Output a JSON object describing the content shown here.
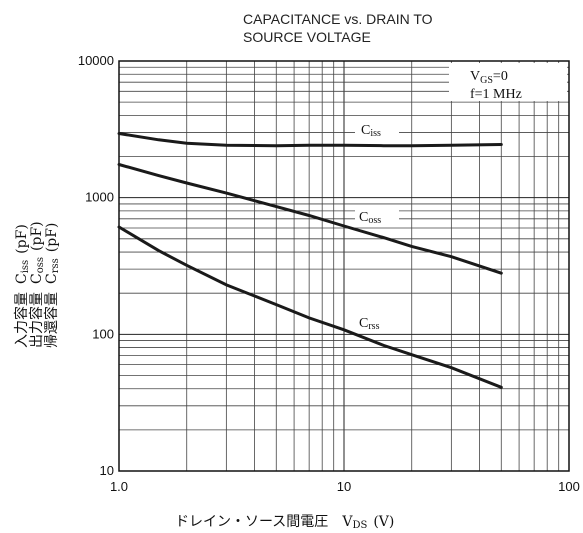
{
  "chart_data": {
    "type": "line",
    "title_line1": "CAPACITANCE vs. DRAIN TO",
    "title_line2": "SOURCE VOLTAGE",
    "xscale": "log",
    "yscale": "log",
    "xlim": [
      1,
      100
    ],
    "ylim": [
      10,
      10000
    ],
    "x_ticks": [
      1,
      10,
      100
    ],
    "x_tick_labels": [
      "1.0",
      "10",
      "100"
    ],
    "y_ticks": [
      10,
      100,
      1000,
      10000
    ],
    "y_tick_labels": [
      "10",
      "100",
      "1000",
      "10000"
    ],
    "grid": true,
    "xlabel_text": "ドレイン・ソース間電圧",
    "xlabel_symbol": "V",
    "xlabel_symbol_sub": "DS",
    "xlabel_unit": "(V)",
    "ylabel_lines": [
      {
        "jp": "入力容量",
        "sym": "C",
        "sub": "iss",
        "unit": "(pF)"
      },
      {
        "jp": "出力容量",
        "sym": "C",
        "sub": "oss",
        "unit": "(pF)"
      },
      {
        "jp": "帰還容量",
        "sym": "C",
        "sub": "rss",
        "unit": "(pF)"
      }
    ],
    "conditions": {
      "line1_sym": "V",
      "line1_sub": "GS",
      "line1_val": "=0",
      "line2": "f=1 MHz"
    },
    "series": [
      {
        "name": "Ciss",
        "label_sym": "C",
        "label_sub": "iss",
        "x": [
          1,
          1.5,
          2,
          3,
          5,
          7,
          10,
          15,
          20,
          30,
          50
        ],
        "y": [
          2950,
          2650,
          2500,
          2420,
          2400,
          2420,
          2420,
          2400,
          2400,
          2420,
          2450
        ]
      },
      {
        "name": "Coss",
        "label_sym": "C",
        "label_sub": "oss",
        "x": [
          1,
          1.5,
          2,
          3,
          5,
          7,
          10,
          15,
          20,
          30,
          50
        ],
        "y": [
          1750,
          1450,
          1280,
          1080,
          860,
          740,
          620,
          510,
          440,
          370,
          280
        ]
      },
      {
        "name": "Crss",
        "label_sym": "C",
        "label_sub": "rss",
        "x": [
          1,
          1.5,
          2,
          3,
          5,
          7,
          10,
          15,
          20,
          30,
          50
        ],
        "y": [
          610,
          410,
          320,
          230,
          165,
          132,
          108,
          83,
          71,
          57,
          41
        ]
      }
    ]
  }
}
